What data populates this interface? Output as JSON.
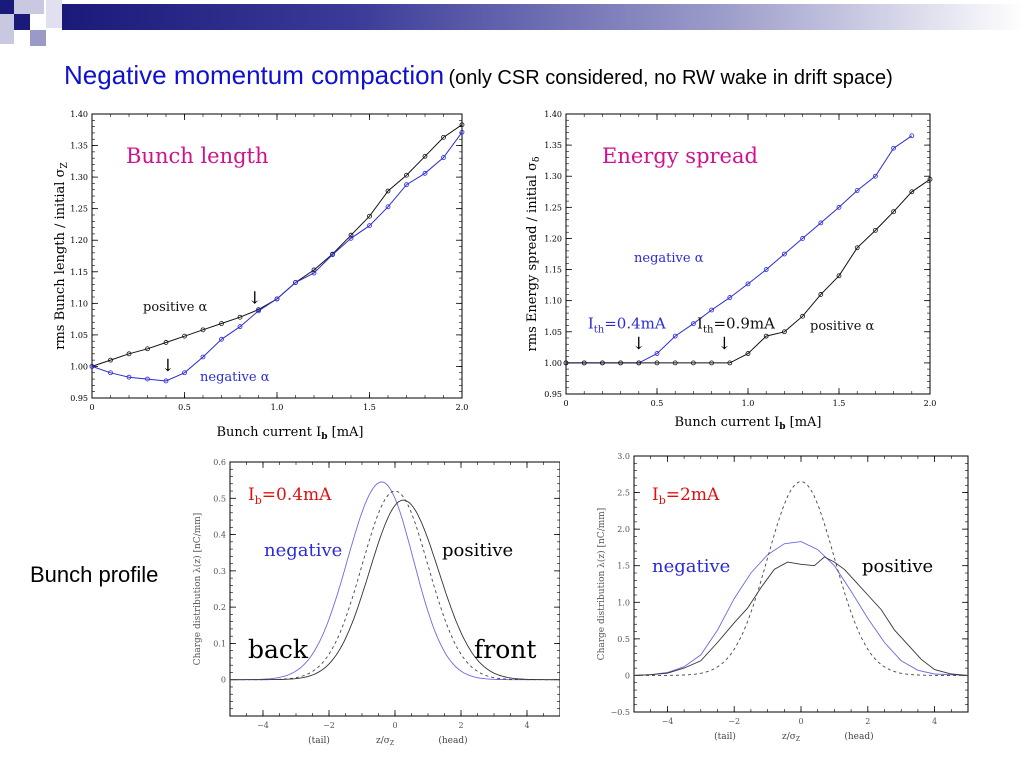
{
  "slide": {
    "title_main": "Negative momentum compaction",
    "title_sub": "(only CSR considered, no RW wake in drift space)",
    "side_label": "Bunch profile"
  },
  "colors": {
    "title": "#1010d0",
    "panel_title": "#d0108c",
    "negative": "#2b2bd6",
    "positive": "#111111",
    "red": "#e01010",
    "deco": "#1a1a7a"
  },
  "chart_data": [
    {
      "id": "bunch-length",
      "type": "line",
      "title": "Bunch length",
      "xlabel": "Bunch current",
      "xlabel_sym": "I",
      "xlabel_sub": "b",
      "xlabel_unit": "[mA]",
      "ylabel": "rms Bunch length / initial σ",
      "ylabel_sub": "Z",
      "xlim": [
        0,
        2.0
      ],
      "ylim": [
        0.95,
        1.4
      ],
      "xticks": [
        "0",
        "0.5",
        "1.0",
        "1.5",
        "2.0"
      ],
      "yticks": [
        "0.95",
        "1.00",
        "1.05",
        "1.10",
        "1.15",
        "1.20",
        "1.25",
        "1.30",
        "1.35",
        "1.40"
      ],
      "series": [
        {
          "name": "positive α",
          "x": [
            0,
            0.1,
            0.2,
            0.3,
            0.4,
            0.5,
            0.6,
            0.7,
            0.8,
            0.9,
            1.0,
            1.1,
            1.2,
            1.3,
            1.4,
            1.5,
            1.6,
            1.7,
            1.8,
            1.9,
            2.0
          ],
          "y": [
            1.0,
            1.01,
            1.02,
            1.028,
            1.038,
            1.048,
            1.058,
            1.068,
            1.078,
            1.09,
            1.107,
            1.133,
            1.153,
            1.178,
            1.208,
            1.238,
            1.278,
            1.303,
            1.333,
            1.363,
            1.383
          ]
        },
        {
          "name": "negative α",
          "x": [
            0,
            0.1,
            0.2,
            0.3,
            0.4,
            0.5,
            0.6,
            0.7,
            0.8,
            0.9,
            1.0,
            1.1,
            1.2,
            1.3,
            1.4,
            1.5,
            1.6,
            1.7,
            1.8,
            1.9,
            2.0
          ],
          "y": [
            1.0,
            0.99,
            0.983,
            0.98,
            0.977,
            0.99,
            1.015,
            1.043,
            1.063,
            1.088,
            1.107,
            1.133,
            1.148,
            1.177,
            1.203,
            1.223,
            1.253,
            1.288,
            1.306,
            1.331,
            1.371
          ]
        }
      ],
      "annotations": [
        {
          "text": "↓",
          "x": 0.88,
          "y": 1.1
        },
        {
          "text": "↓",
          "x": 0.41,
          "y": 0.993
        }
      ]
    },
    {
      "id": "energy-spread",
      "type": "line",
      "title": "Energy spread",
      "xlabel": "Bunch current",
      "xlabel_sym": "I",
      "xlabel_sub": "b",
      "xlabel_unit": "[mA]",
      "ylabel": "rms Energy spread / initial σ",
      "ylabel_sub": "δ",
      "xlim": [
        0,
        2.0
      ],
      "ylim": [
        0.95,
        1.4
      ],
      "xticks": [
        "0",
        "0.5",
        "1.0",
        "1.5",
        "2.0"
      ],
      "yticks": [
        "0.95",
        "1.00",
        "1.05",
        "1.10",
        "1.15",
        "1.20",
        "1.25",
        "1.30",
        "1.35",
        "1.40"
      ],
      "series": [
        {
          "name": "negative α",
          "x": [
            0,
            0.1,
            0.2,
            0.3,
            0.4,
            0.5,
            0.6,
            0.7,
            0.8,
            0.9,
            1.0,
            1.1,
            1.2,
            1.3,
            1.4,
            1.5,
            1.6,
            1.7,
            1.8,
            1.9
          ],
          "y": [
            1.0,
            1.0,
            1.0,
            1.0,
            1.0,
            1.015,
            1.043,
            1.063,
            1.085,
            1.105,
            1.127,
            1.15,
            1.175,
            1.2,
            1.225,
            1.25,
            1.277,
            1.3,
            1.345,
            1.365
          ]
        },
        {
          "name": "positive α",
          "x": [
            0,
            0.1,
            0.2,
            0.3,
            0.4,
            0.5,
            0.6,
            0.7,
            0.8,
            0.9,
            1.0,
            1.1,
            1.2,
            1.3,
            1.4,
            1.5,
            1.6,
            1.7,
            1.8,
            1.9,
            2.0
          ],
          "y": [
            1.0,
            1.0,
            1.0,
            1.0,
            1.0,
            1.0,
            1.0,
            1.0,
            1.0,
            1.0,
            1.015,
            1.043,
            1.05,
            1.075,
            1.11,
            1.14,
            1.185,
            1.213,
            1.243,
            1.275,
            1.295
          ]
        }
      ],
      "annotations": [
        {
          "text": "I",
          "sub": "th",
          "after": "=0.4mA",
          "x": 0.12,
          "y": 1.055,
          "series": "negative α"
        },
        {
          "text": "I",
          "sub": "th",
          "after": "=0.9mA",
          "x": 0.72,
          "y": 1.055,
          "series": "positive α"
        },
        {
          "text": "↓",
          "x": 0.4,
          "y": 1.022
        },
        {
          "text": "↓",
          "x": 0.87,
          "y": 1.022
        }
      ]
    },
    {
      "id": "profile-0.4mA",
      "type": "line",
      "title": "I",
      "title_sub": "b",
      "title_after": "=0.4mA",
      "xlabel": "z/σ",
      "xlabel_sub": "Z",
      "xlabel_left": "(tail)",
      "xlabel_right": "(head)",
      "ylabel": "Charge distribution  λ(z)  [nC/mm]",
      "xlim": [
        -5,
        5
      ],
      "ylim": [
        -0.1,
        0.6
      ],
      "xticks": [
        "−4",
        "−2",
        "0",
        "2",
        "4"
      ],
      "yticks": [
        "0",
        "0.1",
        "0.2",
        "0.3",
        "0.4",
        "0.5",
        "0.6"
      ],
      "series": [
        {
          "name": "negative",
          "style": "solid",
          "peak": 0.545,
          "center": -0.4,
          "sigma_left": 1.04,
          "sigma_right": 0.96
        },
        {
          "name": "positive",
          "style": "solid",
          "peak": 0.495,
          "center": 0.25,
          "sigma_left": 1.02,
          "sigma_right": 1.07
        },
        {
          "name": "",
          "style": "dashed",
          "peak": 0.52,
          "center": 0.0,
          "sigma_left": 1.0,
          "sigma_right": 1.0
        }
      ],
      "labels": {
        "negative": "negative",
        "positive": "positive",
        "back": "back",
        "front": "front"
      }
    },
    {
      "id": "profile-2mA",
      "type": "line",
      "title": "I",
      "title_sub": "b",
      "title_after": "=2mA",
      "xlabel": "z/σ",
      "xlabel_sub": "Z",
      "xlabel_left": "(tail)",
      "xlabel_right": "(head)",
      "ylabel": "Charge distribution  λ(z)  [nC/mm]",
      "xlim": [
        -5,
        5
      ],
      "ylim": [
        -0.5,
        3.0
      ],
      "xticks": [
        "−4",
        "−2",
        "0",
        "2",
        "4"
      ],
      "yticks": [
        "−0.5",
        "0",
        "0.5",
        "1.0",
        "1.5",
        "2.0",
        "2.5",
        "3.0"
      ],
      "series": [
        {
          "name": "negative",
          "style": "solid",
          "x": [
            -5,
            -4.5,
            -4,
            -3.5,
            -3,
            -2.5,
            -2,
            -1.5,
            -1,
            -0.5,
            0,
            0.5,
            1,
            1.5,
            2,
            2.5,
            3,
            3.5,
            4,
            5
          ],
          "y": [
            0,
            0.01,
            0.04,
            0.12,
            0.28,
            0.62,
            1.05,
            1.4,
            1.65,
            1.8,
            1.83,
            1.72,
            1.5,
            1.15,
            0.78,
            0.45,
            0.2,
            0.07,
            0.02,
            0
          ]
        },
        {
          "name": "positive",
          "style": "solid",
          "x": [
            -5,
            -4.5,
            -4,
            -3.5,
            -3,
            -2.5,
            -2,
            -1.6,
            -1.2,
            -0.8,
            -0.4,
            0,
            0.4,
            0.7,
            1.0,
            1.3,
            1.6,
            2.0,
            2.4,
            2.8,
            3.2,
            3.6,
            4.0,
            4.5,
            5
          ],
          "y": [
            0,
            0.01,
            0.03,
            0.1,
            0.2,
            0.45,
            0.72,
            0.92,
            1.2,
            1.45,
            1.55,
            1.52,
            1.5,
            1.62,
            1.55,
            1.45,
            1.3,
            1.1,
            0.9,
            0.62,
            0.42,
            0.22,
            0.08,
            0.02,
            0
          ]
        },
        {
          "name": "",
          "style": "dashed",
          "peak": 2.65,
          "center": 0.0,
          "sigma_left": 1.0,
          "sigma_right": 1.0
        }
      ],
      "labels": {
        "negative": "negative",
        "positive": "positive"
      }
    }
  ]
}
